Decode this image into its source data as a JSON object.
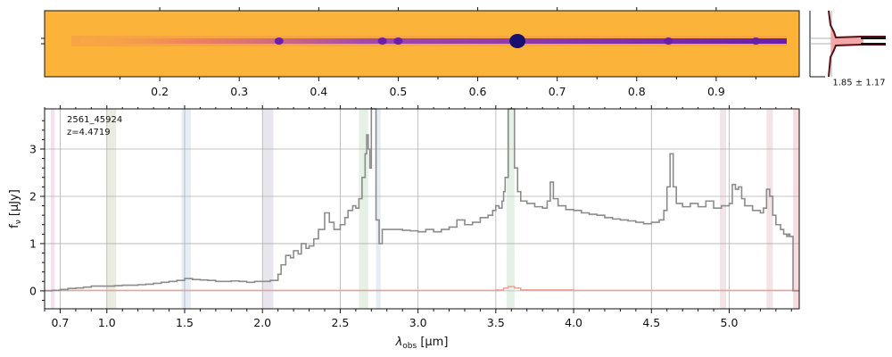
{
  "colors": {
    "spectrum": "#8c8c8c",
    "error": "#f2a09a",
    "grid": "#b0b0b0",
    "image_background": "#fbb33a",
    "image_trace": "#6a1fa8",
    "image_trace_dark": "#17106e",
    "profile_line": "#5a0f14",
    "profile_fill": "#f0a8a8"
  },
  "chart_data": [
    {
      "type": "heatmap",
      "description_units": "top secondary axis in micrometers",
      "top_ticks": [
        "0.2",
        "0.3",
        "0.4",
        "0.5",
        "0.6",
        "0.7",
        "0.8",
        "0.9"
      ],
      "top_tick_values": [
        0.2,
        0.3,
        0.4,
        0.5,
        0.6,
        0.7,
        0.8,
        0.9
      ],
      "bright_features": [
        0.35,
        0.48,
        0.5,
        0.65,
        0.84,
        0.95
      ]
    },
    {
      "type": "line",
      "profile_label": "1.85 ± 1.17"
    },
    {
      "type": "line",
      "id_label": "2561_45924",
      "z_label": "z=4.4719",
      "xlabel": "λ_obs [μm]",
      "xlabel_main": "λ",
      "xlabel_sub": "obs",
      "xlabel_unit": " [μm]",
      "ylabel": "f_ν [μJy]",
      "ylabel_main": "f",
      "ylabel_sub": "ν",
      "ylabel_unit": " [μJy]",
      "xlim": [
        0.6,
        5.45
      ],
      "ylim": [
        -0.38,
        3.85
      ],
      "x_ticks": [
        "0.7",
        "1.0",
        "1.5",
        "2.0",
        "2.5",
        "3.0",
        "3.5",
        "4.0",
        "4.5",
        "5.0"
      ],
      "x_tick_values": [
        0.7,
        1.0,
        1.5,
        2.0,
        2.5,
        3.0,
        3.5,
        4.0,
        4.5,
        5.0
      ],
      "y_ticks": [
        "0",
        "1",
        "2",
        "3"
      ],
      "y_tick_values": [
        0,
        1,
        2,
        3
      ],
      "grid": true,
      "line_bands": [
        {
          "x0": 0.64,
          "x1": 0.665,
          "color": "#c878c8"
        },
        {
          "x0": 1.0,
          "x1": 1.06,
          "color": "#9aaa6a"
        },
        {
          "x0": 1.48,
          "x1": 1.54,
          "color": "#88b0d8"
        },
        {
          "x0": 2.0,
          "x1": 2.07,
          "color": "#9a8ab8"
        },
        {
          "x0": 2.62,
          "x1": 2.68,
          "color": "#8ac08a"
        },
        {
          "x0": 2.73,
          "x1": 2.76,
          "color": "#88b0d8"
        },
        {
          "x0": 3.57,
          "x1": 3.62,
          "color": "#8ac08a"
        },
        {
          "x0": 4.94,
          "x1": 4.98,
          "color": "#c88a8a"
        },
        {
          "x0": 5.24,
          "x1": 5.28,
          "color": "#c88a8a"
        },
        {
          "x0": 5.41,
          "x1": 5.45,
          "color": "#e06070"
        }
      ],
      "series": [
        {
          "role": "flux",
          "x": [
            0.6,
            0.65,
            0.7,
            0.75,
            0.8,
            0.85,
            0.9,
            0.95,
            1.0,
            1.05,
            1.1,
            1.15,
            1.2,
            1.25,
            1.3,
            1.35,
            1.4,
            1.45,
            1.5,
            1.55,
            1.6,
            1.65,
            1.7,
            1.75,
            1.8,
            1.85,
            1.9,
            1.95,
            2.0,
            2.05,
            2.1,
            2.12,
            2.15,
            2.18,
            2.2,
            2.23,
            2.25,
            2.28,
            2.3,
            2.33,
            2.36,
            2.4,
            2.43,
            2.46,
            2.5,
            2.53,
            2.55,
            2.58,
            2.6,
            2.62,
            2.64,
            2.66,
            2.67,
            2.68,
            2.69,
            2.7,
            2.71,
            2.72,
            2.73,
            2.75,
            2.77,
            2.8,
            2.85,
            2.9,
            2.95,
            3.0,
            3.05,
            3.1,
            3.15,
            3.2,
            3.25,
            3.3,
            3.35,
            3.4,
            3.45,
            3.48,
            3.5,
            3.52,
            3.54,
            3.55,
            3.56,
            3.58,
            3.6,
            3.62,
            3.64,
            3.66,
            3.7,
            3.75,
            3.8,
            3.83,
            3.85,
            3.87,
            3.9,
            3.95,
            4.0,
            4.05,
            4.1,
            4.15,
            4.2,
            4.25,
            4.3,
            4.35,
            4.4,
            4.45,
            4.5,
            4.55,
            4.58,
            4.6,
            4.62,
            4.64,
            4.66,
            4.7,
            4.75,
            4.8,
            4.85,
            4.9,
            4.95,
            5.0,
            5.02,
            5.04,
            5.06,
            5.08,
            5.1,
            5.15,
            5.2,
            5.22,
            5.24,
            5.26,
            5.28,
            5.3,
            5.33,
            5.35,
            5.37,
            5.38,
            5.39,
            5.4,
            5.41,
            5.45
          ],
          "y": [
            0.0,
            0.01,
            0.03,
            0.05,
            0.06,
            0.08,
            0.1,
            0.1,
            0.1,
            0.11,
            0.12,
            0.12,
            0.13,
            0.14,
            0.16,
            0.18,
            0.2,
            0.22,
            0.26,
            0.24,
            0.23,
            0.22,
            0.2,
            0.2,
            0.21,
            0.2,
            0.18,
            0.2,
            0.2,
            0.22,
            0.35,
            0.55,
            0.75,
            0.7,
            0.85,
            0.78,
            1.0,
            0.9,
            0.95,
            1.1,
            1.3,
            1.65,
            1.45,
            1.3,
            1.4,
            1.55,
            1.7,
            1.8,
            1.75,
            1.95,
            2.4,
            2.9,
            3.3,
            3.0,
            2.6,
            3.85,
            3.85,
            3.85,
            1.5,
            1.0,
            1.3,
            1.3,
            1.3,
            1.28,
            1.27,
            1.25,
            1.3,
            1.25,
            1.3,
            1.35,
            1.5,
            1.4,
            1.45,
            1.55,
            1.6,
            1.7,
            1.8,
            1.75,
            1.9,
            2.1,
            2.4,
            3.85,
            3.85,
            2.6,
            2.1,
            1.9,
            1.85,
            1.78,
            1.75,
            1.9,
            2.3,
            1.95,
            1.8,
            1.72,
            1.7,
            1.65,
            1.62,
            1.6,
            1.55,
            1.52,
            1.5,
            1.48,
            1.45,
            1.42,
            1.45,
            1.5,
            1.7,
            2.2,
            2.9,
            2.2,
            1.85,
            1.78,
            1.85,
            1.78,
            1.9,
            1.75,
            1.8,
            1.85,
            2.25,
            2.15,
            2.2,
            1.95,
            1.8,
            1.7,
            1.65,
            1.75,
            2.15,
            2.0,
            1.6,
            1.4,
            1.3,
            1.2,
            1.15,
            1.2,
            1.15,
            1.15,
            0.0,
            0.0
          ]
        },
        {
          "role": "error",
          "x": [
            0.6,
            1.0,
            1.5,
            2.0,
            2.5,
            3.0,
            3.5,
            3.55,
            3.58,
            3.62,
            3.66,
            4.0,
            4.5,
            5.0,
            5.45
          ],
          "y": [
            0.01,
            0.01,
            0.01,
            0.01,
            0.01,
            0.01,
            0.02,
            0.06,
            0.09,
            0.06,
            0.02,
            0.01,
            0.01,
            0.01,
            0.01
          ]
        }
      ]
    }
  ]
}
